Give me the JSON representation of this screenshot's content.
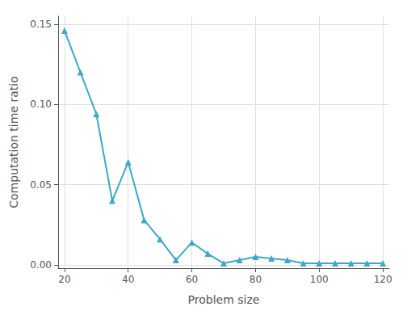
{
  "chart_data": {
    "type": "line",
    "xlabel": "Problem size",
    "ylabel": "Computation time ratio",
    "x": [
      20,
      25,
      30,
      35,
      40,
      45,
      50,
      55,
      60,
      65,
      70,
      75,
      80,
      85,
      90,
      95,
      100,
      105,
      110,
      115,
      120
    ],
    "series": [
      {
        "values": [
          0.146,
          0.12,
          0.094,
          0.04,
          0.064,
          0.028,
          0.016,
          0.003,
          0.014,
          0.007,
          0.001,
          0.003,
          0.005,
          0.004,
          0.003,
          0.001,
          0.001,
          0.001,
          0.001,
          0.001,
          0.001
        ],
        "color": "#3EA8C8",
        "marker": "triangle"
      }
    ],
    "xlim": [
      18,
      122
    ],
    "ylim": [
      -0.002,
      0.155
    ],
    "xticks": [
      20,
      40,
      60,
      80,
      100,
      120
    ],
    "yticks": [
      {
        "value": 0.0,
        "label": "0.00"
      },
      {
        "value": 0.05,
        "label": "0.05"
      },
      {
        "value": 0.1,
        "label": "0.10"
      },
      {
        "value": 0.15,
        "label": "0.15"
      }
    ],
    "grid": true
  }
}
